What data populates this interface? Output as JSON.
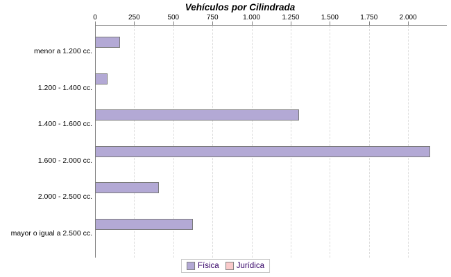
{
  "chart_data": {
    "type": "bar",
    "orientation": "horizontal",
    "title": "Vehículos por Cilindrada",
    "categories": [
      "menor a 1.200 cc.",
      "1.200 - 1.400 cc.",
      "1.400 - 1.600 cc.",
      "1.600 - 2.000 cc.",
      "2.000 - 2.500 cc.",
      "mayor o igual a 2.500 cc."
    ],
    "series": [
      {
        "name": "Física",
        "color": "#b3a9d5",
        "border_color": "#7a7a7a",
        "values": [
          160,
          80,
          1305,
          2140,
          410,
          625
        ]
      },
      {
        "name": "Jurídica",
        "color": "#f9caca",
        "border_color": "#7a7a7a",
        "values": [
          0,
          0,
          0,
          0,
          0,
          0
        ]
      }
    ],
    "xlim": [
      0,
      2243
    ],
    "xticks": {
      "values": [
        0,
        250,
        500,
        750,
        1000,
        1250,
        1500,
        1750,
        2000
      ],
      "labels": [
        "0",
        "250",
        "500",
        "750",
        "1.000",
        "1.250",
        "1.500",
        "1.750",
        "2.000"
      ]
    },
    "grid": "vertical-dashed",
    "gridline_color": "#dcdcdc",
    "axis_color": "#808080",
    "legend_position": "bottom",
    "legend_text_color": "#330066",
    "xlabel": "",
    "ylabel": ""
  }
}
